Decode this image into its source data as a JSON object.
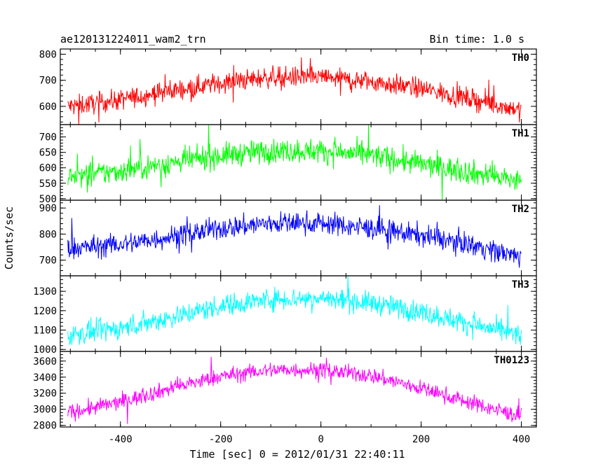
{
  "header": {
    "title": "ae120131224011_wam2_trn",
    "bin_time": "Bin time: 1.0 s"
  },
  "chart_data": {
    "type": "line",
    "xlabel": "Time [sec] 0 = 2012/01/31 22:40:11",
    "ylabel": "Counts/sec",
    "xlim": [
      -520,
      430
    ],
    "xticks": [
      -400,
      -200,
      0,
      200,
      400
    ],
    "x_range_data": [
      -505,
      400
    ],
    "grid": false,
    "panels": [
      {
        "name": "TH0",
        "color": "#ff0000",
        "ylim": [
          530,
          820
        ],
        "yticks": [
          600,
          700,
          800
        ],
        "trend": {
          "x": [
            -500,
            -400,
            -300,
            -200,
            -100,
            0,
            100,
            200,
            300,
            400
          ],
          "y": [
            600,
            625,
            660,
            690,
            712,
            712,
            695,
            668,
            628,
            585
          ]
        },
        "noise": 28,
        "spike_max": 820,
        "spike_min": 530
      },
      {
        "name": "TH1",
        "color": "#00ff00",
        "ylim": [
          495,
          740
        ],
        "yticks": [
          500,
          550,
          600,
          650,
          700
        ],
        "trend": {
          "x": [
            -500,
            -400,
            -300,
            -200,
            -100,
            0,
            100,
            200,
            300,
            400
          ],
          "y": [
            570,
            590,
            615,
            640,
            655,
            655,
            640,
            612,
            585,
            555
          ]
        },
        "noise": 28,
        "spike_max": 740,
        "spike_min": 495
      },
      {
        "name": "TH2",
        "color": "#0000ff",
        "ylim": [
          640,
          930
        ],
        "yticks": [
          700,
          800,
          900
        ],
        "trend": {
          "x": [
            -500,
            -400,
            -300,
            -200,
            -100,
            0,
            100,
            200,
            300,
            400
          ],
          "y": [
            745,
            760,
            790,
            822,
            842,
            842,
            822,
            795,
            760,
            710
          ]
        },
        "noise": 30,
        "spike_max": 930,
        "spike_min": 640
      },
      {
        "name": "TH3",
        "color": "#00ffff",
        "ylim": [
          990,
          1380
        ],
        "yticks": [
          1000,
          1100,
          1200,
          1300
        ],
        "trend": {
          "x": [
            -500,
            -400,
            -300,
            -200,
            -100,
            0,
            100,
            200,
            300,
            400
          ],
          "y": [
            1075,
            1110,
            1165,
            1225,
            1260,
            1265,
            1240,
            1195,
            1130,
            1070
          ]
        },
        "noise": 40,
        "spike_max": 1380,
        "spike_min": 990
      },
      {
        "name": "TH0123",
        "color": "#ff00ff",
        "ylim": [
          2780,
          3720
        ],
        "yticks": [
          2800,
          3000,
          3200,
          3400,
          3600
        ],
        "trend": {
          "x": [
            -500,
            -400,
            -300,
            -200,
            -100,
            0,
            100,
            200,
            300,
            400
          ],
          "y": [
            2960,
            3090,
            3260,
            3410,
            3490,
            3490,
            3420,
            3260,
            3080,
            2910
          ]
        },
        "noise": 70,
        "spike_max": 3720,
        "spike_min": 2780
      }
    ]
  }
}
